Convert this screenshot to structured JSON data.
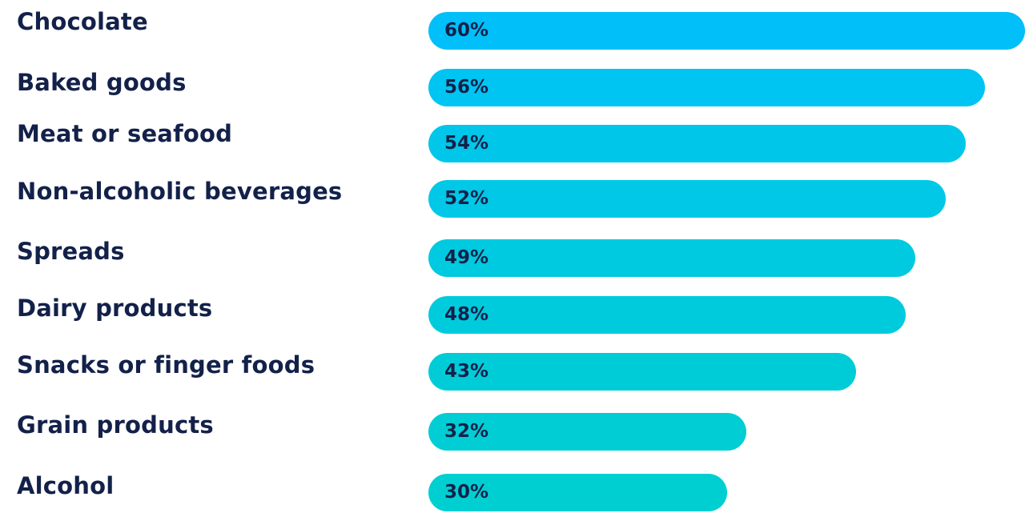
{
  "chart_data": {
    "type": "bar",
    "orientation": "horizontal",
    "categories": [
      "Chocolate",
      "Baked goods",
      "Meat or seafood",
      "Non-alcoholic beverages",
      "Spreads",
      "Dairy products",
      "Snacks or finger foods",
      "Grain products",
      "Alcohol"
    ],
    "values": [
      60,
      56,
      54,
      52,
      49,
      48,
      43,
      32,
      30
    ],
    "value_labels": [
      "60%",
      "56%",
      "54%",
      "52%",
      "49%",
      "48%",
      "43%",
      "32%",
      "30%"
    ],
    "unit": "%",
    "xlim": [
      0,
      60
    ],
    "grid": false,
    "legend": "none",
    "colors": [
      "#00bff9",
      "#00c4f2",
      "#00c6ea",
      "#00c8e6",
      "#00cadf",
      "#00cbdc",
      "#00ccd8",
      "#00cdd4",
      "#00cfd2"
    ],
    "label_color": "#13214a"
  }
}
